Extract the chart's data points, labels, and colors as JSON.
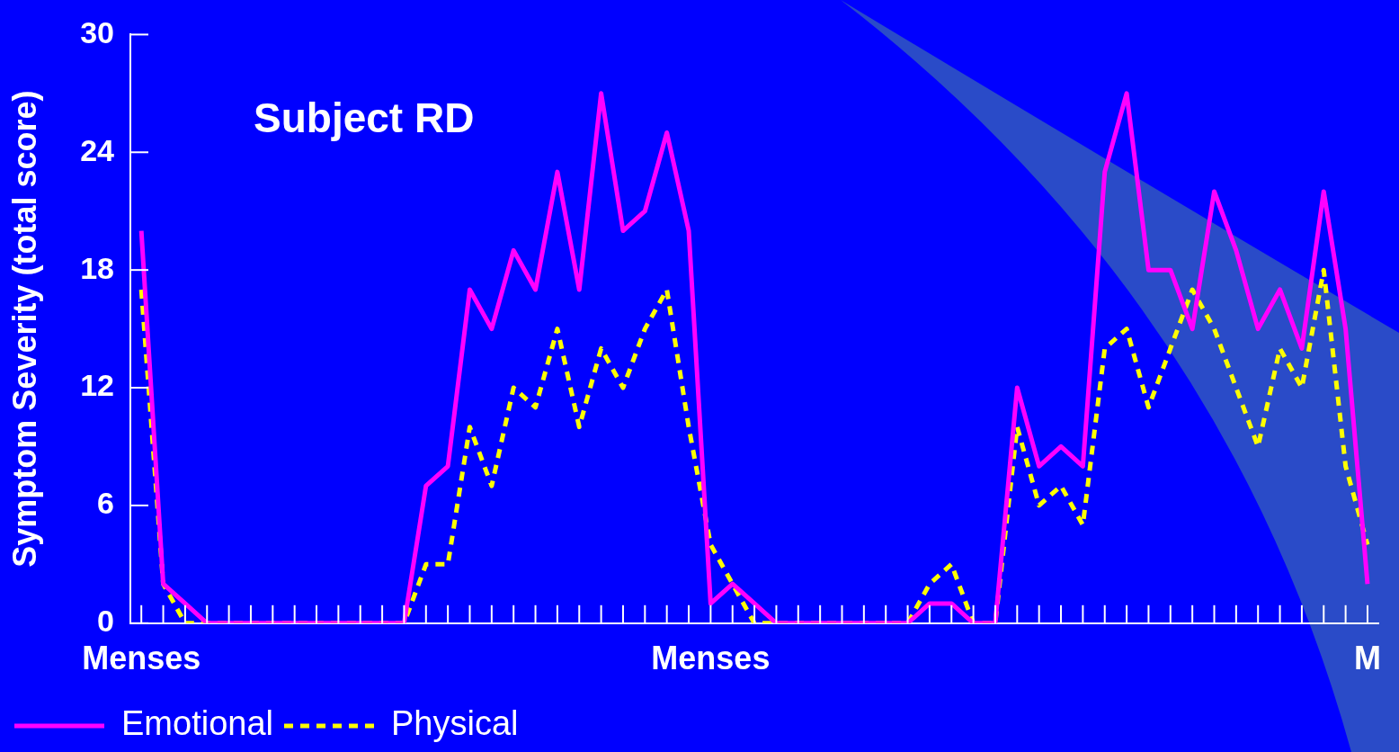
{
  "chart_data": {
    "type": "line",
    "title": "Subject RD",
    "ylabel": "Symptom Severity (total score)",
    "categories": [
      "Menses",
      null,
      null,
      null,
      null,
      null,
      null,
      null,
      null,
      null,
      null,
      null,
      null,
      null,
      null,
      null,
      null,
      null,
      null,
      null,
      null,
      null,
      null,
      null,
      null,
      null,
      "Menses",
      null,
      null,
      null,
      null,
      null,
      null,
      null,
      null,
      null,
      null,
      null,
      null,
      null,
      null,
      null,
      null,
      null,
      null,
      null,
      null,
      null,
      null,
      null,
      null,
      null,
      null,
      null,
      null,
      null,
      "M"
    ],
    "series": [
      {
        "name": "Emotional",
        "color": "#ff00ff",
        "line_style": "solid",
        "values": [
          20,
          2,
          1,
          0,
          0,
          0,
          0,
          0,
          0,
          0,
          0,
          0,
          0,
          7,
          8,
          17,
          15,
          19,
          17,
          23,
          17,
          27,
          20,
          21,
          25,
          20,
          1,
          2,
          1,
          0,
          0,
          0,
          0,
          0,
          0,
          0,
          1,
          1,
          0,
          0,
          12,
          8,
          9,
          8,
          23,
          27,
          18,
          18,
          15,
          22,
          19,
          15,
          17,
          14,
          22,
          15,
          2
        ]
      },
      {
        "name": "Physical",
        "color": "#ffff00",
        "line_style": "dashed",
        "values": [
          17,
          2,
          0,
          0,
          0,
          0,
          0,
          0,
          0,
          0,
          0,
          0,
          0,
          3,
          3,
          10,
          7,
          12,
          11,
          15,
          10,
          14,
          12,
          15,
          17,
          10,
          4,
          2,
          0,
          0,
          0,
          0,
          0,
          0,
          0,
          0,
          2,
          3,
          0,
          0,
          10,
          6,
          7,
          5,
          14,
          15,
          11,
          14,
          17,
          15,
          12,
          9,
          14,
          12,
          18,
          8,
          4
        ]
      }
    ],
    "ylim": [
      0,
      30
    ],
    "yticks": [
      0,
      6,
      12,
      18,
      24,
      30
    ],
    "legend": "bottom",
    "marker": "none",
    "grid": false
  }
}
